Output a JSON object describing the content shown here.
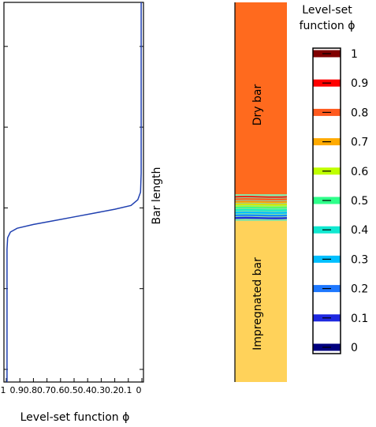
{
  "chart_data": [
    {
      "type": "line",
      "xlabel": "Level-set function ϕ",
      "ylabel": "Bar length",
      "xlim": [
        1,
        0
      ],
      "ylim": [
        0,
        1
      ],
      "x_tick_labels": [
        "1",
        "0.9",
        "0.8",
        "0.7",
        "0.6",
        "0.5",
        "0.4",
        "0.3",
        "0.2",
        "0.1",
        "0"
      ],
      "x_tick_values": [
        1,
        0.9,
        0.8,
        0.7,
        0.6,
        0.5,
        0.4,
        0.3,
        0.2,
        0.1,
        0
      ],
      "series": [
        {
          "color": "#2040b0",
          "points": [
            [
              0.995,
              0.0
            ],
            [
              0.995,
              0.35
            ],
            [
              0.99,
              0.38
            ],
            [
              0.97,
              0.395
            ],
            [
              0.92,
              0.405
            ],
            [
              0.8,
              0.415
            ],
            [
              0.65,
              0.425
            ],
            [
              0.5,
              0.435
            ],
            [
              0.35,
              0.445
            ],
            [
              0.2,
              0.455
            ],
            [
              0.08,
              0.465
            ],
            [
              0.03,
              0.48
            ],
            [
              0.01,
              0.5
            ],
            [
              0.005,
              0.55
            ],
            [
              0.005,
              1.0
            ]
          ]
        }
      ]
    },
    {
      "type": "heatmap",
      "region_labels": {
        "top": "Dry bar",
        "bottom": "Impregnated bar"
      },
      "colorbar": {
        "title_line1": "Level-set",
        "title_line2": "function ϕ",
        "ticks": [
          "1",
          "0.9",
          "0.8",
          "0.7",
          "0.6",
          "0.5",
          "0.4",
          "0.3",
          "0.2",
          "0.1",
          "0"
        ],
        "tick_values": [
          1,
          0.9,
          0.8,
          0.7,
          0.6,
          0.5,
          0.4,
          0.3,
          0.2,
          0.1,
          0
        ],
        "colors": [
          "#800000",
          "#ff0000",
          "#ff5a1e",
          "#ffaa00",
          "#bfff00",
          "#2eff8a",
          "#10e8d0",
          "#00bfff",
          "#1e78ff",
          "#1e28e0",
          "#00007f"
        ]
      },
      "colors": {
        "dry": "#ff6a1e",
        "impregnated": "#ffd25a"
      },
      "interface_levels": [
        0.1,
        0.2,
        0.3,
        0.4,
        0.5,
        0.6,
        0.7,
        0.8,
        0.9
      ]
    }
  ]
}
